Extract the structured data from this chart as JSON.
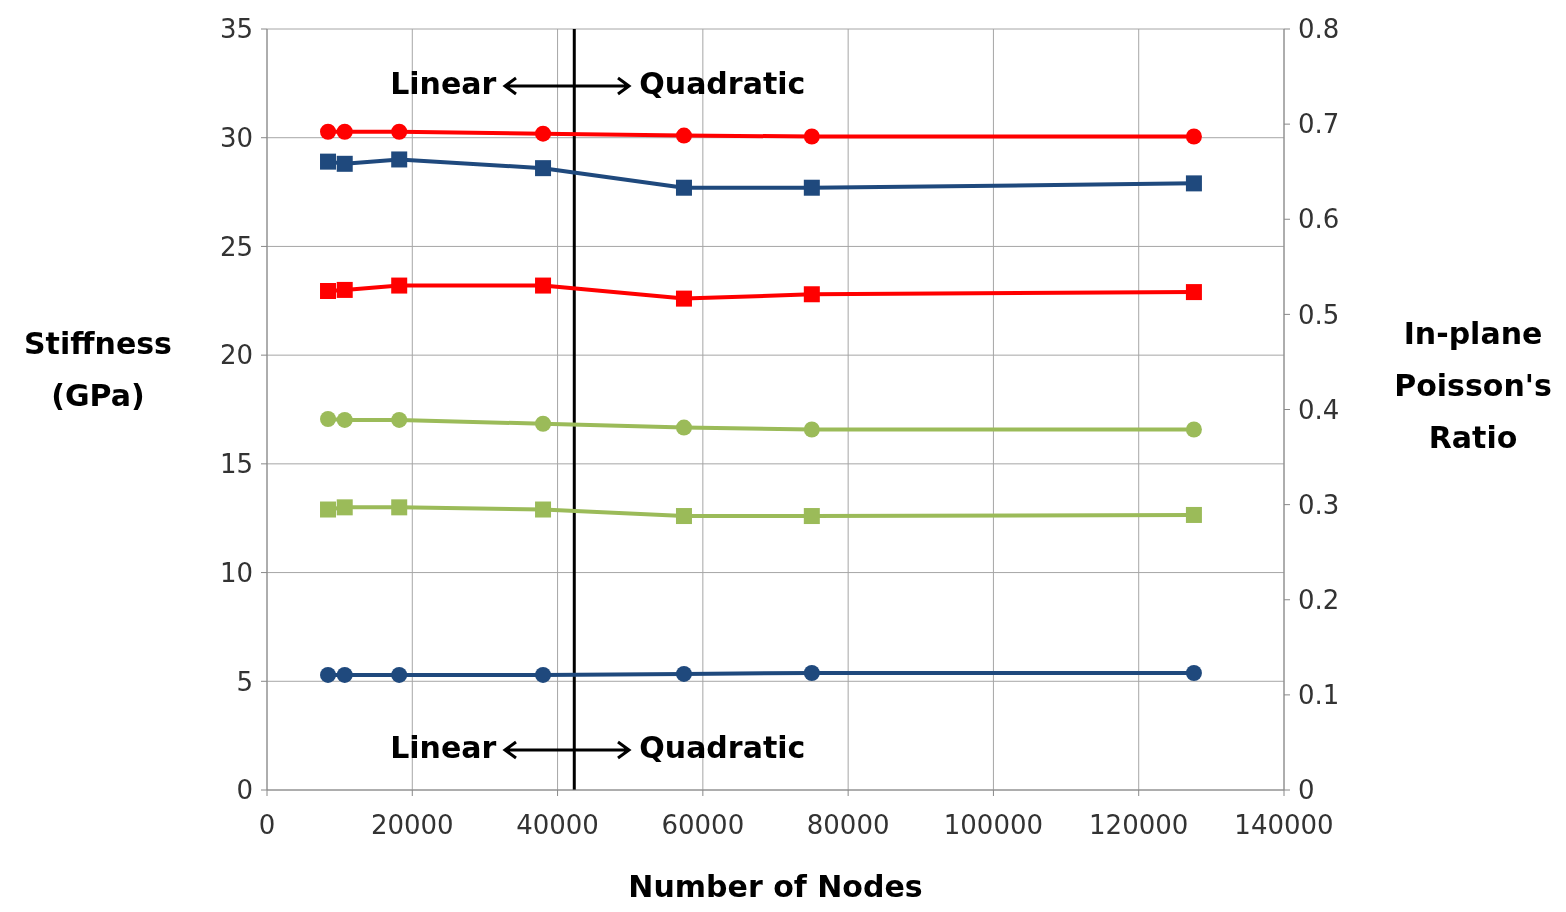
{
  "chart_data": {
    "type": "line",
    "xlabel": "Number of Nodes",
    "ylabel": "Stiffness (GPa)",
    "y2label": "In-plane Poisson's Ratio",
    "x": [
      8400,
      10700,
      18200,
      38000,
      57400,
      75000,
      127600
    ],
    "series": [
      {
        "color": "#ff0000",
        "marker": "circle",
        "axis": "y2",
        "values": [
          0.692,
          0.692,
          0.692,
          0.69,
          0.688,
          0.687,
          0.687
        ]
      },
      {
        "color": "#1f497d",
        "marker": "square",
        "values": [
          28.9,
          28.8,
          29.0,
          28.6,
          27.7,
          27.7,
          27.9
        ]
      },
      {
        "color": "#ff0000",
        "marker": "square",
        "values": [
          22.95,
          23.0,
          23.2,
          23.2,
          22.6,
          22.8,
          22.9
        ]
      },
      {
        "color": "#9bbb59",
        "marker": "circle",
        "axis": "y2",
        "values": [
          0.39,
          0.389,
          0.389,
          0.385,
          0.381,
          0.379,
          0.379
        ]
      },
      {
        "color": "#9bbb59",
        "marker": "square",
        "values": [
          12.9,
          13.0,
          13.0,
          12.9,
          12.6,
          12.6,
          12.65
        ]
      },
      {
        "color": "#1f497d",
        "marker": "circle",
        "axis": "y2",
        "values": [
          0.121,
          0.121,
          0.121,
          0.121,
          0.122,
          0.123,
          0.123
        ]
      }
    ],
    "xlim": [
      0,
      140000
    ],
    "xticks": [
      0,
      20000,
      40000,
      60000,
      80000,
      100000,
      120000,
      140000
    ],
    "ylim": [
      0,
      35
    ],
    "yticks": [
      0,
      5,
      10,
      15,
      20,
      25,
      30,
      35
    ],
    "y2lim": [
      0,
      0.8
    ],
    "y2ticks": [
      0,
      0.1,
      0.2,
      0.3,
      0.4,
      0.5,
      0.6,
      0.7,
      0.8
    ],
    "grid": true,
    "ref_lines": [
      {
        "axis": "x",
        "value": 42300,
        "color": "#000000"
      }
    ],
    "annotations": [
      "Linear",
      "Quadratic",
      "Linear",
      "Quadratic"
    ]
  }
}
